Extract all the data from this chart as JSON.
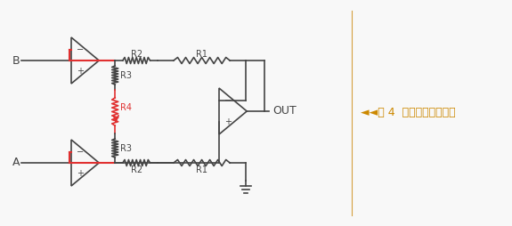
{
  "bg_color": "#f8f8f8",
  "circuit_color": "#444444",
  "red_color": "#e03030",
  "orange_color": "#cc8800",
  "divider_color": "#d4a040",
  "label_B": "B",
  "label_A": "A",
  "label_OUT": "OUT",
  "label_R1": "R1",
  "label_R2": "R2",
  "label_R3": "R3",
  "label_R4": "R4",
  "caption": "◄◄图 4  三运放仪表放大器",
  "figsize": [
    5.75,
    2.54
  ],
  "dpi": 100
}
